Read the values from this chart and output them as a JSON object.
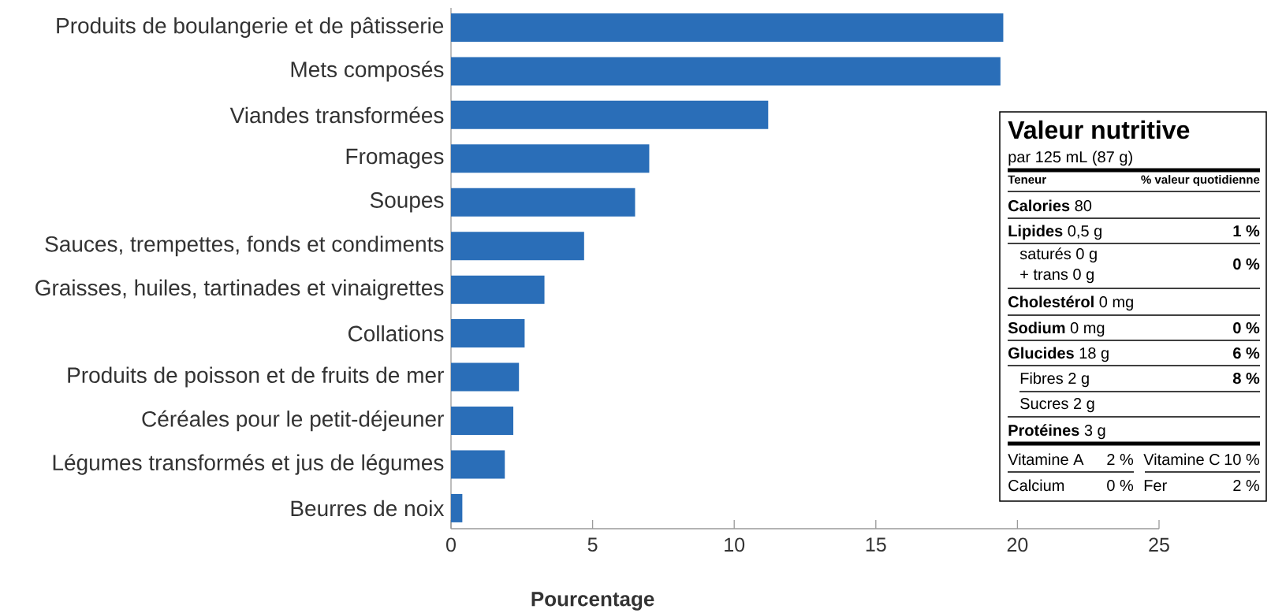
{
  "chart_data": [
    {
      "type": "bar",
      "orientation": "horizontal",
      "xlabel": "Pourcentage",
      "categories": [
        "Produits de boulangerie et de pâtisserie",
        "Mets composés",
        "Viandes transformées",
        "Fromages",
        "Soupes",
        "Sauces, trempettes, fonds et condiments",
        "Graisses, huiles, tartinades et vinaigrettes",
        "Collations",
        "Produits de poisson et de fruits de mer",
        "Céréales pour le petit-déjeuner",
        "Légumes transformés et jus de légumes",
        "Beurres de noix"
      ],
      "values": [
        19.5,
        19.4,
        11.2,
        7,
        6.5,
        4.7,
        3.3,
        2.6,
        2.4,
        2.2,
        1.9,
        0.4
      ],
      "color": "#2a6eb8",
      "xlim": [
        0,
        25
      ],
      "xticks": [
        0,
        5,
        10,
        15,
        20,
        25
      ]
    },
    {
      "type": "other",
      "title": "Valeur nutritive",
      "subtitle": "par 125 mL (87 g)",
      "annotations": [
        "Teneur",
        "% valeur quotidienne",
        "**Calories** 80",
        "**Lipides** 0,5 g",
        "1 %",
        "saturés 0 g",
        "+ trans 0 g",
        "0 %",
        "**Cholestérol** 0 mg",
        "**Sodium** 0 mg",
        "0 %",
        "**Glucides** 18 g",
        "6 %",
        "Fibres 2 g",
        "8 %",
        "Sucres 2 g",
        "**Protéines** 3 g",
        "Vitamine A",
        "2 %",
        "Vitamine C",
        "10 %",
        "Calcium",
        "0 %",
        "Fer",
        "2 %"
      ]
    }
  ]
}
